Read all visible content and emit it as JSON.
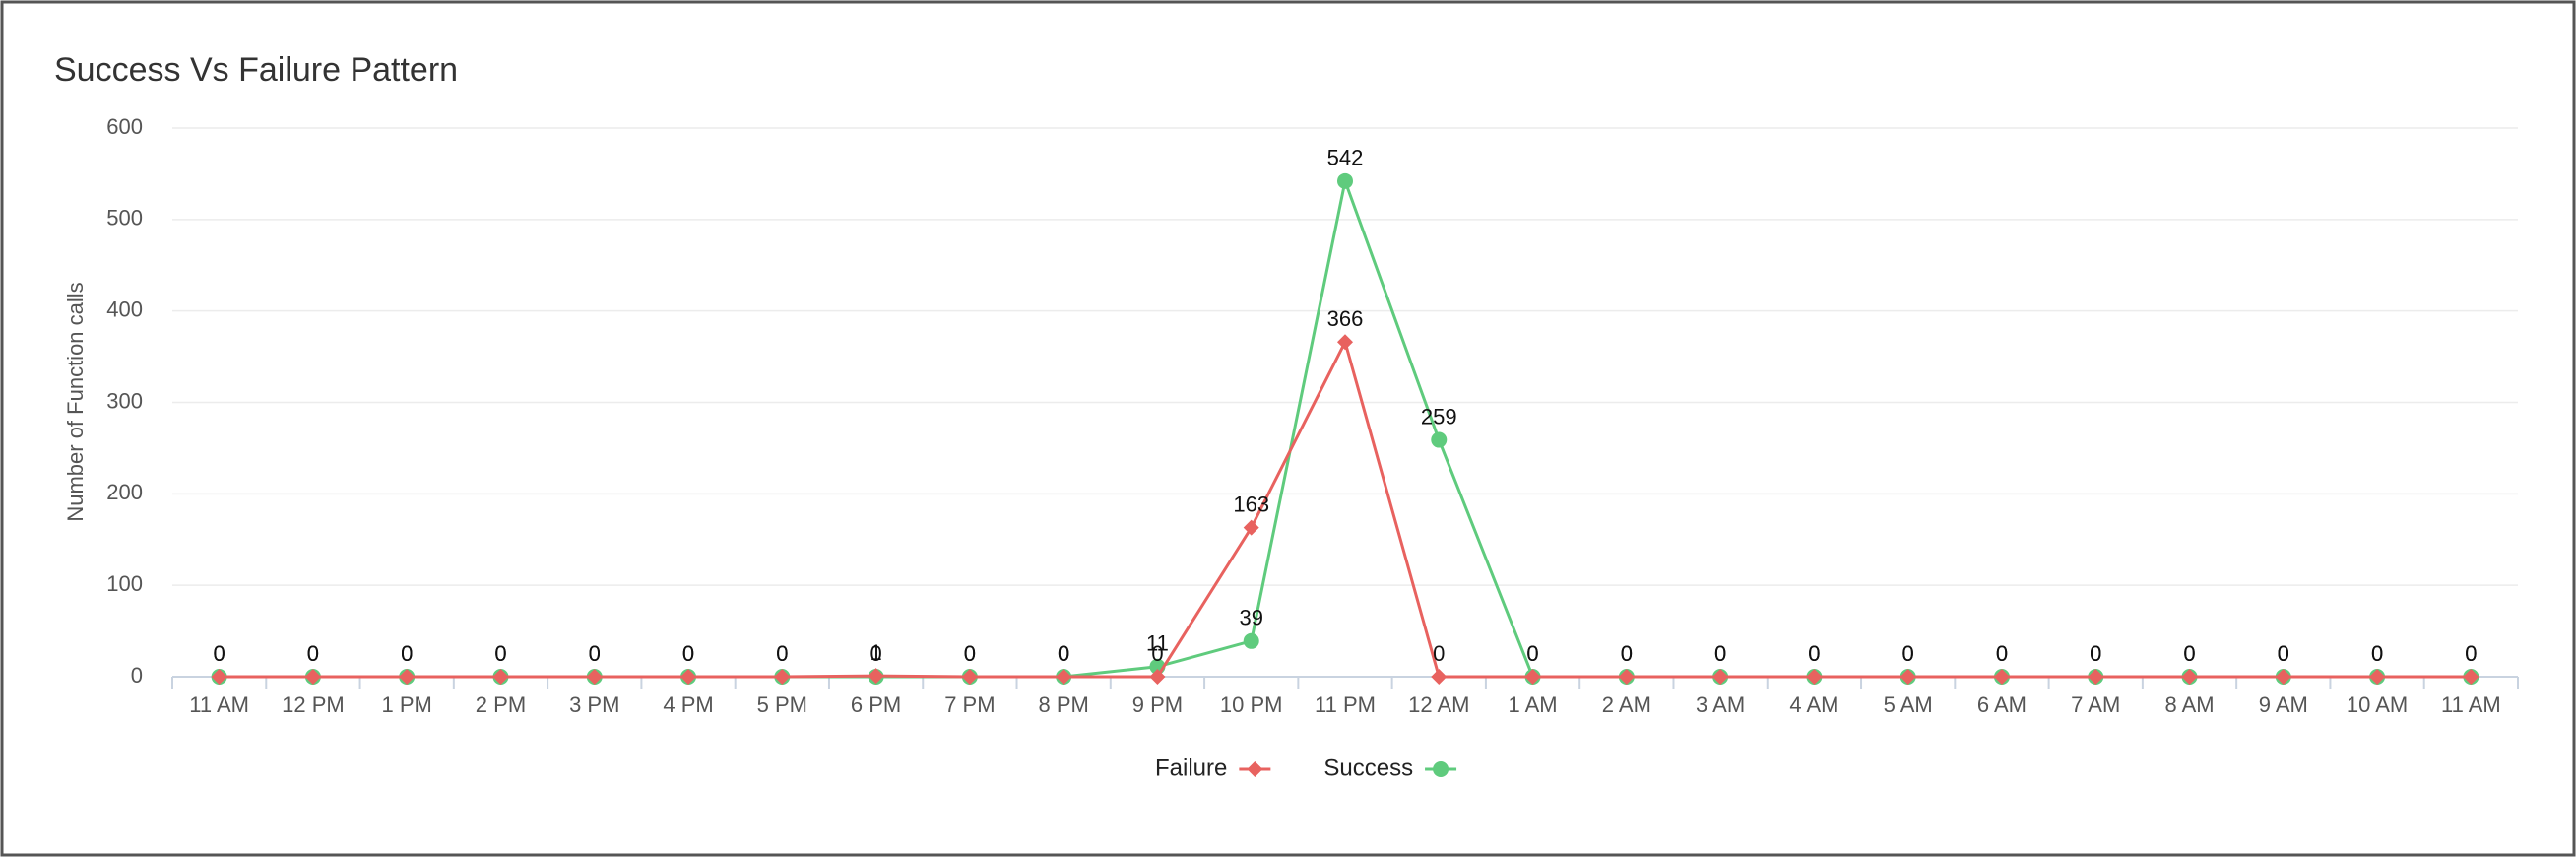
{
  "chart_data": {
    "type": "line",
    "title": "Success Vs Failure Pattern",
    "y_label": "Number of Function calls",
    "categories": [
      "11 AM",
      "12 PM",
      "1 PM",
      "2 PM",
      "3 PM",
      "4 PM",
      "5 PM",
      "6 PM",
      "7 PM",
      "8 PM",
      "9 PM",
      "10 PM",
      "11 PM",
      "12 AM",
      "1 AM",
      "2 AM",
      "3 AM",
      "4 AM",
      "5 AM",
      "6 AM",
      "7 AM",
      "8 AM",
      "9 AM",
      "10 AM",
      "11 AM"
    ],
    "series": [
      {
        "name": "Failure",
        "color": "#e8625f",
        "marker": "diamond",
        "values": [
          0,
          0,
          0,
          0,
          0,
          0,
          0,
          1,
          0,
          0,
          0,
          163,
          366,
          0,
          0,
          0,
          0,
          0,
          0,
          0,
          0,
          0,
          0,
          0,
          0
        ]
      },
      {
        "name": "Success",
        "color": "#5fcb7d",
        "marker": "circle",
        "values": [
          0,
          0,
          0,
          0,
          0,
          0,
          0,
          0,
          0,
          0,
          11,
          39,
          542,
          259,
          0,
          0,
          0,
          0,
          0,
          0,
          0,
          0,
          0,
          0,
          0
        ]
      }
    ],
    "ylim": [
      0,
      600
    ],
    "yticks": [
      0,
      100,
      200,
      300,
      400,
      500,
      600
    ],
    "grid": true
  }
}
